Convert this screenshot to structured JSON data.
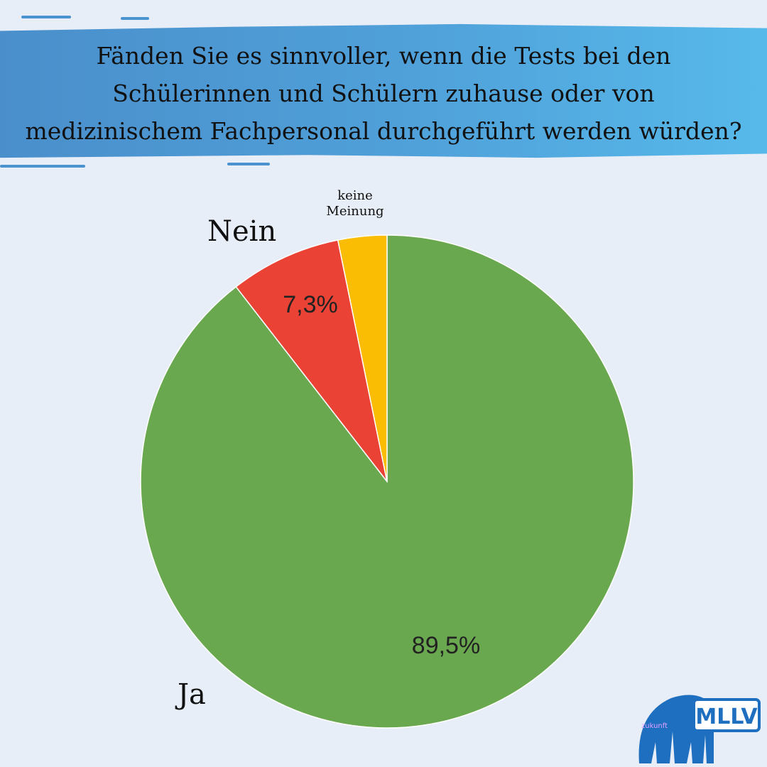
{
  "banner": {
    "lines": [
      "Fänden Sie es sinnvoller, wenn die Tests bei den",
      "Schülerinnen und Schülern zuhause oder von",
      "medizinischem Fachpersonal durchgeführt werden würden?"
    ]
  },
  "chart_data": {
    "type": "pie",
    "start": "12 o'clock, clockwise",
    "slices": [
      {
        "label": "Ja",
        "value": 89.5,
        "value_label": "89,5%",
        "color": "#6aa84f"
      },
      {
        "label": "Nein",
        "value": 7.3,
        "value_label": "7,3%",
        "color": "#ea4335"
      },
      {
        "label_lines": [
          "keine",
          "Meinung"
        ],
        "value": 3.2,
        "color": "#fbbc04"
      }
    ]
  },
  "logo": {
    "text": "MLLV",
    "subtext": "zukunft",
    "color": "#1f6fc0"
  }
}
